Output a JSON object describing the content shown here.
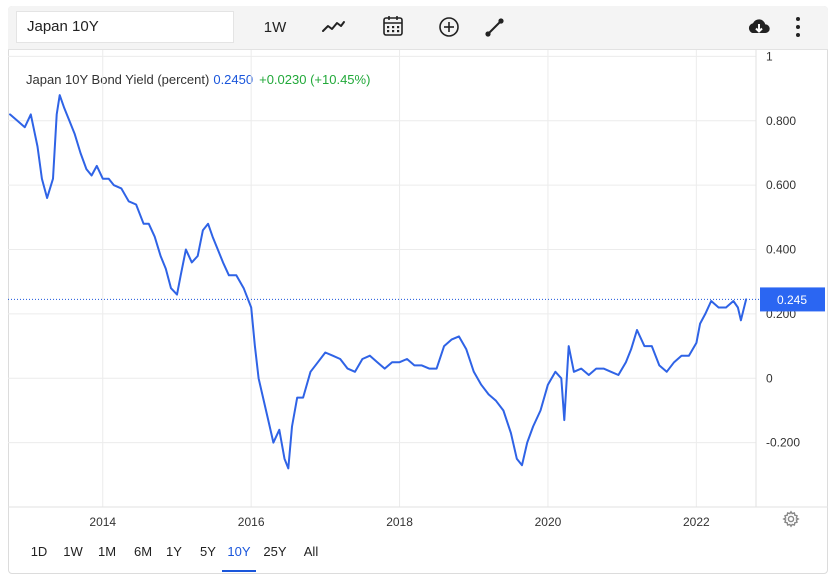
{
  "toolbar": {
    "symbol": "Japan 10Y",
    "interval": "1W",
    "icons": [
      "line-chart-icon",
      "calendar-icon",
      "add-circle-icon",
      "draw-line-icon",
      "download-cloud-icon",
      "more-vertical-icon"
    ]
  },
  "info": {
    "name": "Japan 10Y Bond Yield (percent)",
    "value": "0.2450",
    "change": "+0.0230 (+10.45%)"
  },
  "colors": {
    "line": "#2f63e6",
    "accent": "#1a56db",
    "positive": "#22a93a",
    "price_tag_bg": "#2b66f2"
  },
  "ranges": [
    "1D",
    "1W",
    "1M",
    "6M",
    "1Y",
    "5Y",
    "10Y",
    "25Y",
    "All"
  ],
  "active_range": "10Y",
  "chart_data": {
    "type": "line",
    "series": [
      {
        "x": [
          2012.75,
          2012.85,
          2012.95,
          2013.03,
          2013.12,
          2013.18,
          2013.25,
          2013.33,
          2013.38,
          2013.42,
          2013.48,
          2013.55,
          2013.62,
          2013.7,
          2013.78,
          2013.85,
          2013.92,
          2014.0,
          2014.08,
          2014.15,
          2014.25,
          2014.35,
          2014.45,
          2014.55,
          2014.62,
          2014.7,
          2014.78,
          2014.85,
          2014.92,
          2015.0,
          2015.05,
          2015.12,
          2015.2,
          2015.28,
          2015.35,
          2015.42,
          2015.48,
          2015.55,
          2015.62,
          2015.7,
          2015.8,
          2015.9,
          2016.0,
          2016.05,
          2016.1,
          2016.15,
          2016.22,
          2016.3,
          2016.38,
          2016.45,
          2016.5,
          2016.55,
          2016.62,
          2016.7,
          2016.8,
          2016.9,
          2017.0,
          2017.1,
          2017.2,
          2017.3,
          2017.4,
          2017.5,
          2017.6,
          2017.7,
          2017.8,
          2017.9,
          2018.0,
          2018.1,
          2018.2,
          2018.3,
          2018.4,
          2018.5,
          2018.6,
          2018.7,
          2018.8,
          2018.9,
          2019.0,
          2019.1,
          2019.2,
          2019.3,
          2019.4,
          2019.5,
          2019.58,
          2019.65,
          2019.72,
          2019.8,
          2019.9,
          2020.0,
          2020.1,
          2020.18,
          2020.22,
          2020.28,
          2020.35,
          2020.45,
          2020.55,
          2020.65,
          2020.75,
          2020.85,
          2020.95,
          2021.05,
          2021.12,
          2021.2,
          2021.3,
          2021.4,
          2021.5,
          2021.6,
          2021.7,
          2021.8,
          2021.9,
          2022.0,
          2022.05,
          2022.12,
          2022.2,
          2022.3,
          2022.4,
          2022.5,
          2022.56,
          2022.6,
          2022.67
        ],
        "y": [
          0.82,
          0.8,
          0.78,
          0.82,
          0.72,
          0.62,
          0.56,
          0.62,
          0.82,
          0.88,
          0.84,
          0.8,
          0.76,
          0.7,
          0.65,
          0.63,
          0.66,
          0.62,
          0.62,
          0.6,
          0.59,
          0.55,
          0.54,
          0.48,
          0.48,
          0.44,
          0.38,
          0.34,
          0.28,
          0.26,
          0.32,
          0.4,
          0.36,
          0.38,
          0.46,
          0.48,
          0.44,
          0.4,
          0.36,
          0.32,
          0.32,
          0.28,
          0.22,
          0.1,
          0.0,
          -0.05,
          -0.12,
          -0.2,
          -0.16,
          -0.25,
          -0.28,
          -0.15,
          -0.06,
          -0.06,
          0.02,
          0.05,
          0.08,
          0.07,
          0.06,
          0.03,
          0.02,
          0.06,
          0.07,
          0.05,
          0.03,
          0.05,
          0.05,
          0.06,
          0.04,
          0.04,
          0.03,
          0.03,
          0.1,
          0.12,
          0.13,
          0.09,
          0.02,
          -0.02,
          -0.05,
          -0.07,
          -0.1,
          -0.17,
          -0.25,
          -0.27,
          -0.2,
          -0.15,
          -0.1,
          -0.02,
          0.02,
          0.0,
          -0.13,
          0.1,
          0.02,
          0.03,
          0.01,
          0.03,
          0.03,
          0.02,
          0.01,
          0.05,
          0.09,
          0.15,
          0.1,
          0.1,
          0.04,
          0.02,
          0.05,
          0.07,
          0.07,
          0.11,
          0.17,
          0.2,
          0.24,
          0.22,
          0.22,
          0.24,
          0.22,
          0.18,
          0.245
        ]
      }
    ],
    "x_ticks": [
      "2014",
      "2016",
      "2018",
      "2020",
      "2022"
    ],
    "x_tick_values": [
      2014,
      2016,
      2018,
      2020,
      2022
    ],
    "y_ticks": [
      "1",
      "0.800",
      "0.600",
      "0.400",
      "0.200",
      "0",
      "-0.200"
    ],
    "y_tick_values": [
      1.0,
      0.8,
      0.6,
      0.4,
      0.2,
      0.0,
      -0.2
    ],
    "xlim": [
      2012.75,
      2022.75
    ],
    "ylim": [
      -0.4,
      1.02
    ],
    "last_value_label": "0.245",
    "last_value": 0.245,
    "grid": true
  }
}
